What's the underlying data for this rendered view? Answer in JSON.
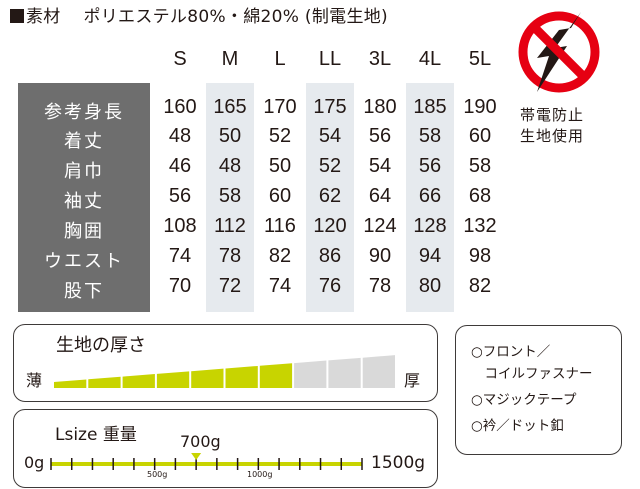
{
  "material": {
    "marker": "■",
    "label": "素材",
    "value": "ポリエステル80%・綿20% (制電生地)"
  },
  "size_table": {
    "columns": [
      "S",
      "M",
      "L",
      "LL",
      "3L",
      "4L",
      "5L"
    ],
    "highlighted_columns": [
      "M",
      "LL",
      "4L"
    ],
    "rows": [
      {
        "label": "参考身長",
        "values": [
          "160",
          "165",
          "170",
          "175",
          "180",
          "185",
          "190"
        ]
      },
      {
        "label": "着丈",
        "values": [
          "48",
          "50",
          "52",
          "54",
          "56",
          "58",
          "60"
        ]
      },
      {
        "label": "肩巾",
        "values": [
          "46",
          "48",
          "50",
          "52",
          "54",
          "56",
          "58"
        ]
      },
      {
        "label": "袖丈",
        "values": [
          "56",
          "58",
          "60",
          "62",
          "64",
          "66",
          "68"
        ]
      },
      {
        "label": "胸囲",
        "values": [
          "108",
          "112",
          "116",
          "120",
          "124",
          "128",
          "132"
        ]
      },
      {
        "label": "ウエスト",
        "values": [
          "74",
          "78",
          "82",
          "86",
          "90",
          "94",
          "98"
        ]
      },
      {
        "label": "股下",
        "values": [
          "70",
          "72",
          "74",
          "76",
          "78",
          "80",
          "82"
        ]
      }
    ]
  },
  "antistatic": {
    "icon": "no-static-icon",
    "line1": "帯電防止",
    "line2": "生地使用",
    "circle_color": "#e60012"
  },
  "thickness": {
    "title": "生地の厚さ",
    "thin_label": "薄",
    "thick_label": "厚",
    "segments_total": 10,
    "segments_filled": 7,
    "fill_color": "#c8d400",
    "empty_color": "#d9d9d9"
  },
  "weight": {
    "title": "Lsize 重量",
    "value_label": "700g",
    "min_label": "0g",
    "max_label": "1500g",
    "mid_labels": [
      "500g",
      "1000g"
    ],
    "value": 700,
    "min": 0,
    "max": 1500,
    "tick_step": 100,
    "line_color": "#c8d400"
  },
  "features": {
    "items": [
      "○フロント／",
      "　コイルファスナー",
      "○マジックテープ",
      "○衿／ドット釦"
    ]
  }
}
